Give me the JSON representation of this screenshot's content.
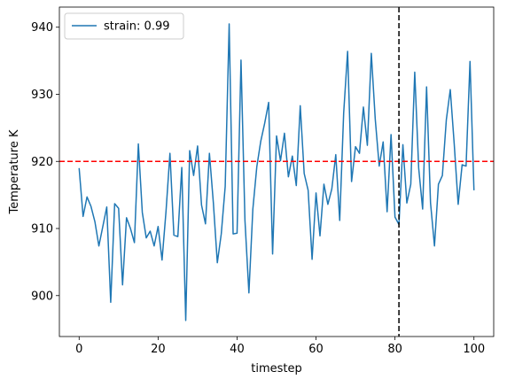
{
  "chart_data": {
    "type": "line",
    "xlabel": "timestep",
    "ylabel": "Temperature K",
    "x": [
      0,
      1,
      2,
      3,
      4,
      5,
      6,
      7,
      8,
      9,
      10,
      11,
      12,
      13,
      14,
      15,
      16,
      17,
      18,
      19,
      20,
      21,
      22,
      23,
      24,
      25,
      26,
      27,
      28,
      29,
      30,
      31,
      32,
      33,
      34,
      35,
      36,
      37,
      38,
      39,
      40,
      41,
      42,
      43,
      44,
      45,
      46,
      47,
      48,
      49,
      50,
      51,
      52,
      53,
      54,
      55,
      56,
      57,
      58,
      59,
      60,
      61,
      62,
      63,
      64,
      65,
      66,
      67,
      68,
      69,
      70,
      71,
      72,
      73,
      74,
      75,
      76,
      77,
      78,
      79,
      80,
      81,
      82,
      83,
      84,
      85,
      86,
      87,
      88,
      89,
      90,
      91,
      92,
      93,
      94,
      95,
      96,
      97,
      98,
      99,
      100
    ],
    "series": [
      {
        "name": "strain: 0.99",
        "color": "#1f77b4",
        "values": [
          919,
          911.8,
          914.7,
          913.3,
          911,
          907.4,
          910.3,
          913.2,
          899,
          913.7,
          913,
          901.6,
          911.6,
          910,
          907.9,
          922.6,
          912.4,
          908.6,
          909.6,
          907.4,
          910.3,
          905.3,
          912.5,
          921.2,
          909,
          908.8,
          919.1,
          896.3,
          921.6,
          917.9,
          922.3,
          913.5,
          910.7,
          921.2,
          913.8,
          904.9,
          909.2,
          916.3,
          940.5,
          909.2,
          909.3,
          935.1,
          911.2,
          900.4,
          912.9,
          919.2,
          923,
          925.7,
          928.8,
          906.2,
          923.8,
          920.1,
          924.2,
          917.7,
          920.8,
          916.4,
          928.3,
          918.2,
          915.7,
          905.4,
          915.3,
          908.9,
          916.6,
          913.6,
          915.9,
          921,
          911.2,
          927.2,
          936.4,
          917,
          922.2,
          921.2,
          928.1,
          922.4,
          936.1,
          926.3,
          919.3,
          922.9,
          912.5,
          924,
          911.7,
          910.6,
          922.5,
          913.8,
          916.6,
          933.3,
          919,
          912.9,
          931.1,
          913.8,
          907.4,
          916.6,
          917.9,
          926.2,
          930.7,
          922.6,
          913.6,
          919.5,
          919.3,
          934.9,
          915.7
        ]
      }
    ],
    "reference_lines": [
      {
        "axis": "y",
        "value": 920,
        "color": "#ff0000",
        "style": "dashed"
      },
      {
        "axis": "x",
        "value": 81,
        "color": "#000000",
        "style": "dashed"
      }
    ],
    "xlim": [
      -5,
      105
    ],
    "ylim": [
      893.9,
      943.0
    ],
    "xticks": [
      0,
      20,
      40,
      60,
      80,
      100
    ],
    "yticks": [
      900,
      910,
      920,
      930,
      940
    ],
    "legend": "upper left"
  }
}
